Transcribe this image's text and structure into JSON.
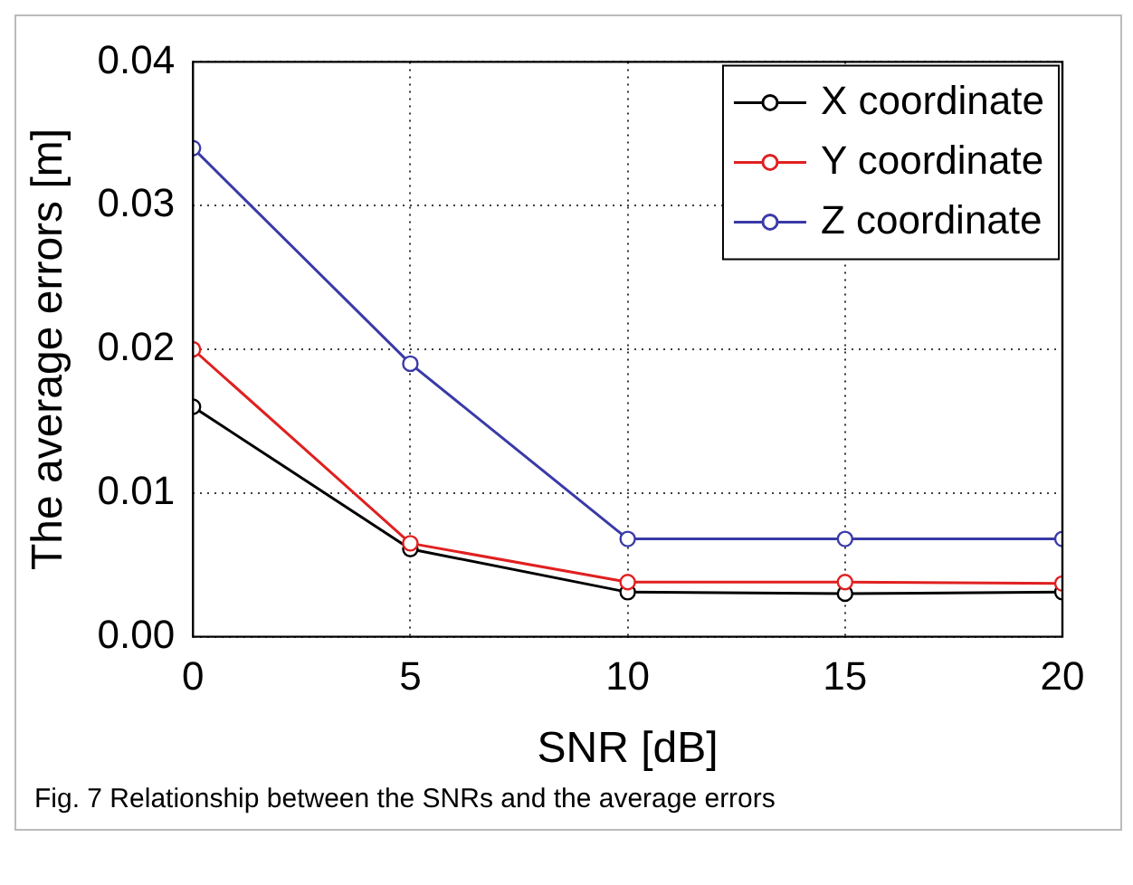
{
  "chart_data": {
    "type": "line",
    "xlabel": "SNR [dB]",
    "ylabel": "The average errors [m]",
    "annotations": [
      "Fig. 7 Relationship between the SNRs and the average errors"
    ],
    "x": [
      0,
      5,
      10,
      15,
      20
    ],
    "series": [
      {
        "name": "X coordinate",
        "color": "#000000",
        "values": [
          0.016,
          0.0061,
          0.0031,
          0.003,
          0.0031
        ]
      },
      {
        "name": "Y coordinate",
        "color": "#e02020",
        "values": [
          0.02,
          0.0065,
          0.0038,
          0.0038,
          0.0037
        ]
      },
      {
        "name": "Z coordinate",
        "color": "#3a3aa8",
        "values": [
          0.034,
          0.019,
          0.0068,
          0.0068,
          0.0068
        ]
      }
    ],
    "xlim": [
      0,
      20
    ],
    "xticks": [
      0,
      5,
      10,
      15,
      20
    ],
    "ylim": [
      0,
      0.04
    ],
    "yticks": [
      {
        "value": 0,
        "label": "0.00"
      },
      0.01,
      0.02,
      0.03,
      0.04
    ],
    "grid": true,
    "legend": "top right",
    "marker": "circle",
    "line_style": "solid"
  }
}
